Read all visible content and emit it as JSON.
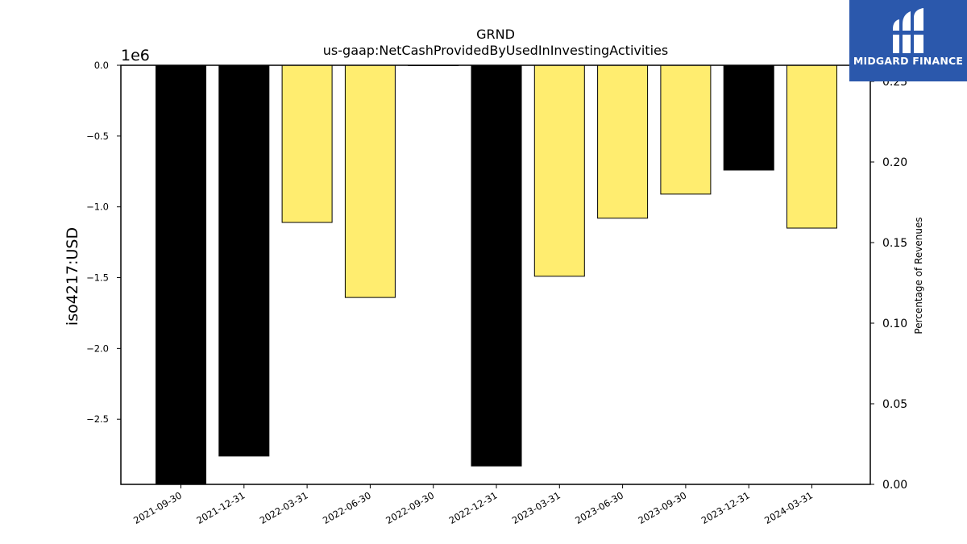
{
  "chart_data": {
    "type": "bar",
    "title": "GRND",
    "subtitle": "us-gaap:NetCashProvidedByUsedInInvestingActivities",
    "ylabel": "iso4217:USD",
    "y_offset_label": "1e6",
    "y2label": "Percentage of Revenues",
    "categories": [
      "2021-09-30",
      "2021-12-31",
      "2022-03-31",
      "2022-06-30",
      "2022-09-30",
      "2022-12-31",
      "2023-03-31",
      "2023-06-30",
      "2023-09-30",
      "2023-12-31",
      "2024-03-31"
    ],
    "values": [
      -2960000,
      -2760000,
      -1110000,
      -1640000,
      0,
      -2830000,
      -1490000,
      -1080000,
      -910000,
      -740000,
      -1150000
    ],
    "bar_colors": [
      "#000000",
      "#000000",
      "#ffed6f",
      "#ffed6f",
      "#ffed6f",
      "#000000",
      "#ffed6f",
      "#ffed6f",
      "#ffed6f",
      "#000000",
      "#ffed6f"
    ],
    "ylim": [
      -2960000,
      0
    ],
    "yticks": [
      0,
      -500000,
      -1000000,
      -1500000,
      -2000000,
      -2500000
    ],
    "ytick_labels": [
      "0.0",
      "−0.5",
      "−1.0",
      "−1.5",
      "−2.0",
      "−2.5"
    ],
    "y2lim": [
      0,
      0.26
    ],
    "y2ticks": [
      0,
      0.05,
      0.1,
      0.15,
      0.2,
      0.25
    ],
    "y2tick_labels": [
      "0.00",
      "0.05",
      "0.10",
      "0.15",
      "0.20",
      "0.25"
    ],
    "grid": false,
    "legend": "none"
  },
  "logo": {
    "text": "MIDGARD FINANCE"
  }
}
